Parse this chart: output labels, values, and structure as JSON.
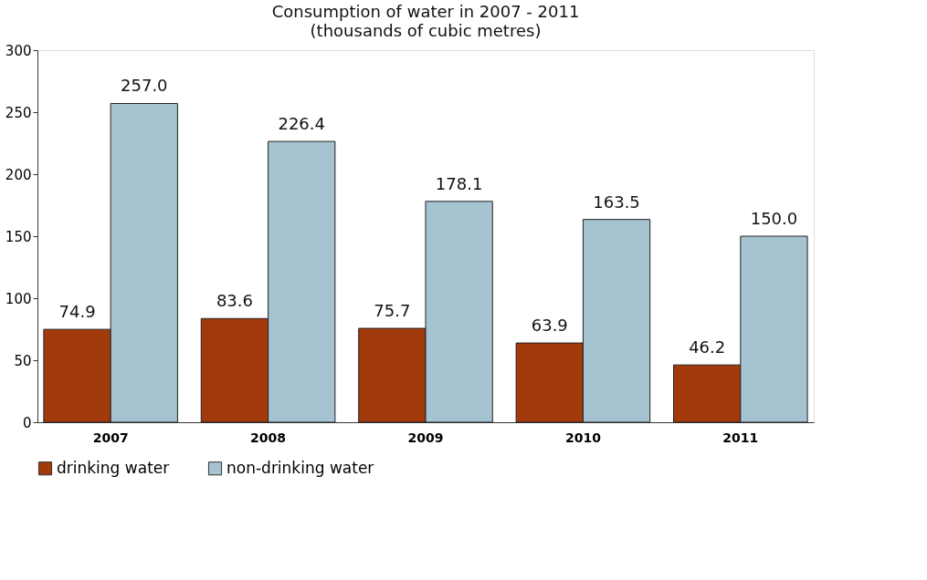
{
  "chart_data": {
    "type": "bar",
    "title": "Consumption of water in 2007 - 2011",
    "subtitle": "(thousands of cubic metres)",
    "categories": [
      "2007",
      "2008",
      "2009",
      "2010",
      "2011"
    ],
    "series": [
      {
        "name": "drinking water",
        "color": "#a33a0c",
        "values": [
          74.9,
          83.6,
          75.7,
          63.9,
          46.2
        ]
      },
      {
        "name": "non-drinking water",
        "color": "#a6c3d1",
        "values": [
          257.0,
          226.4,
          178.1,
          163.5,
          150.0
        ]
      }
    ],
    "value_labels": [
      [
        "74.9",
        "83.6",
        "75.7",
        "63.9",
        "46.2"
      ],
      [
        "257.0",
        "226.4",
        "178.1",
        "163.5",
        "150.0"
      ]
    ],
    "ylim": [
      0,
      300
    ],
    "yticks": [
      0,
      50,
      100,
      150,
      200,
      250,
      300
    ],
    "grid": false,
    "legend": "bottom"
  }
}
